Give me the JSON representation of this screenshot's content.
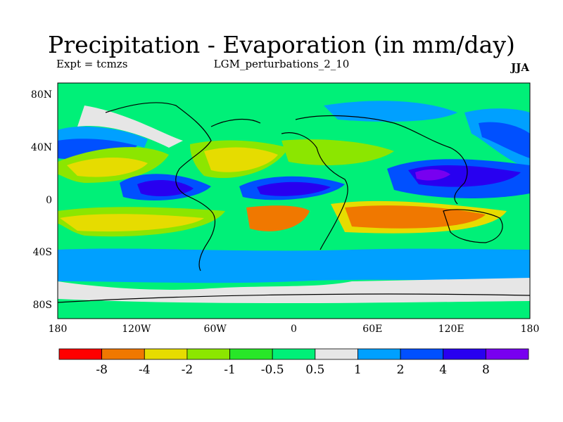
{
  "title": "Precipitation - Evaporation (in mm/day)",
  "experiment": "Expt = tcmzs",
  "run": "LGM_perturbations_2_10",
  "season": "JJA",
  "y_axis": {
    "ticks": [
      "80N",
      "40N",
      "0",
      "40S",
      "80S"
    ]
  },
  "x_axis": {
    "ticks": [
      "180",
      "120W",
      "60W",
      "0",
      "60E",
      "120E",
      "180"
    ]
  },
  "colorbar": {
    "colors": [
      "#ff0000",
      "#f07800",
      "#e6dc00",
      "#8ce600",
      "#28e628",
      "#00f078",
      "#e6e6e6",
      "#00a0ff",
      "#0050ff",
      "#2800f0",
      "#7800f0"
    ],
    "labels": [
      "-8",
      "-4",
      "-2",
      "-1",
      "-0.5",
      "0.5",
      "1",
      "2",
      "4",
      "8"
    ]
  },
  "legend_colors": {
    "ocean_base": "#00f078",
    "coast_line": "#000000"
  }
}
